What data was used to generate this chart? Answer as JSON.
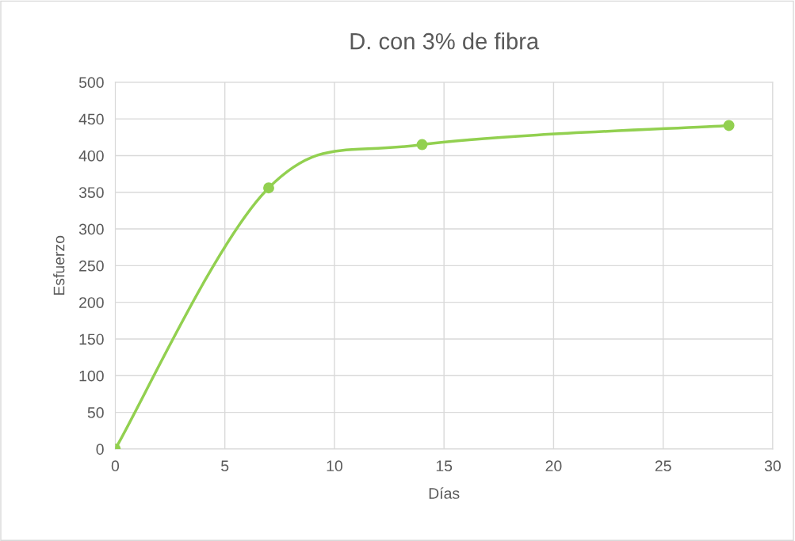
{
  "chart_data": {
    "type": "line",
    "title": "D. con 3% de fibra",
    "xlabel": "Días",
    "ylabel": "Esfuerzo",
    "x": [
      0,
      7,
      14,
      28
    ],
    "series": [
      {
        "color": "#92d050",
        "values": [
          0,
          356,
          415,
          441
        ]
      }
    ],
    "xlim": [
      0,
      30
    ],
    "xticks": [
      0,
      5,
      10,
      15,
      20,
      25,
      30
    ],
    "ylim": [
      0,
      500
    ],
    "yticks": [
      0,
      50,
      100,
      150,
      200,
      250,
      300,
      350,
      400,
      450,
      500
    ],
    "grid": true,
    "marker": "circle",
    "line_style": "solid",
    "legend": false
  }
}
